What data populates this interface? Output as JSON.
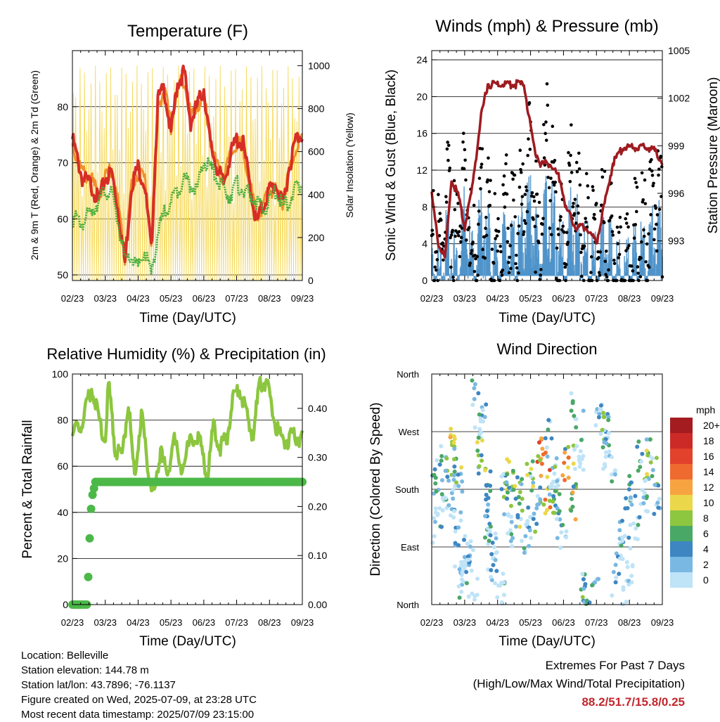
{
  "xticks": [
    "02/23",
    "03/23",
    "04/23",
    "05/23",
    "06/23",
    "07/23",
    "08/23",
    "09/23"
  ],
  "footer": {
    "location": "Location: Belleville",
    "elevation": "Station elevation: 144.78 m",
    "latlon": "Station lat/lon: 43.7896; -76.1137",
    "created": "Figure created on Wed, 2025-07-09, at 23:28 UTC",
    "recent": "Most recent data timestamp: 2025/07/09 23:15:00",
    "extremes_title": "Extremes For Past 7 Days",
    "extremes_sub": "(High/Low/Max Wind/Total Precipitation)",
    "extremes_values": "88.2/51.7/15.8/0.25"
  },
  "chart_data": [
    {
      "type": "line",
      "title": "Temperature (F)",
      "xlabel": "Time (Day/UTC)",
      "ylabel": "2m & 9m T (Red, Orange) & 2m Td (Green)",
      "ylabel_right": "Solar Insolation (Yellow)",
      "ylim": [
        49,
        90
      ],
      "yticks": [
        50,
        60,
        70,
        80
      ],
      "ylim_right": [
        0,
        1070
      ],
      "yticks_right": [
        0,
        200,
        400,
        600,
        800,
        1000
      ],
      "x_months": [
        0,
        0.3,
        0.55,
        0.8,
        1.0,
        1.2,
        1.4,
        1.6,
        1.8,
        2.0,
        2.2,
        2.4,
        2.6,
        2.8,
        3.0,
        3.2,
        3.4,
        3.6,
        3.8,
        4.0,
        4.2,
        4.4,
        4.6,
        4.8,
        5.0,
        5.2,
        5.4,
        5.6,
        5.8,
        6.0,
        6.2,
        6.4,
        6.6,
        6.8,
        7.0
      ],
      "series": [
        {
          "color": "#d62e26",
          "values": [
            75,
            68,
            67,
            64,
            68,
            69,
            62,
            53,
            67,
            70,
            67,
            55,
            82,
            84,
            76,
            85,
            87,
            78,
            81,
            84,
            74,
            70,
            67,
            72,
            75,
            74,
            67,
            60,
            63,
            66,
            67,
            63,
            70,
            75,
            76
          ]
        },
        {
          "color": "#f0902a",
          "values": [
            74,
            69,
            68,
            65,
            68,
            70,
            63,
            54,
            67,
            69,
            68,
            57,
            81,
            84,
            77,
            84,
            86,
            79,
            81,
            83,
            75,
            70,
            68,
            72,
            74,
            74,
            67,
            61,
            63,
            66,
            66,
            64,
            69,
            74,
            75
          ]
        },
        {
          "color": "#4caf3e",
          "values": [
            61,
            60,
            62,
            64,
            66,
            65,
            60,
            53,
            54,
            52,
            55,
            51,
            58,
            62,
            64,
            66,
            68,
            67,
            66,
            71,
            70,
            68,
            66,
            65,
            67,
            66,
            65,
            64,
            62,
            64,
            66,
            63,
            64,
            66,
            67
          ]
        }
      ]
    },
    {
      "type": "line",
      "title": "Winds (mph) & Pressure (mb)",
      "xlabel": "Time (Day/UTC)",
      "ylabel": "Sonic Wind & Gust (Blue, Black)",
      "ylabel_right": "Station Pressure (Maroon)",
      "ylim": [
        0,
        25
      ],
      "yticks": [
        0,
        4,
        8,
        12,
        16,
        20,
        24
      ],
      "ylim_right": [
        990.5,
        1005
      ],
      "yticks_right": [
        993,
        996,
        999,
        1002,
        1005
      ],
      "pressure_x_months": [
        0,
        0.2,
        0.4,
        0.6,
        0.8,
        1.0,
        1.2,
        1.5,
        1.7,
        2.0,
        2.4,
        2.8,
        3.1,
        3.3,
        3.6,
        3.9,
        4.1,
        4.4,
        4.7,
        5.0,
        5.3,
        5.5,
        5.8,
        6.1,
        6.4,
        6.7,
        7.0
      ],
      "pressure": [
        996,
        993,
        992,
        997,
        996,
        994,
        996,
        1001,
        1003,
        1003,
        1003,
        1003,
        999,
        998,
        998,
        997,
        995,
        994,
        994,
        993,
        996,
        998,
        999,
        999,
        999,
        999,
        998
      ],
      "wind_x_months": [
        0,
        0.25,
        0.5,
        0.75,
        1.0,
        1.25,
        1.5,
        1.75,
        2.0,
        2.25,
        2.5,
        2.75,
        3.0,
        3.25,
        3.5,
        3.75,
        4.0,
        4.25,
        4.5,
        4.75,
        5.0,
        5.25,
        5.5,
        5.75,
        6.0,
        6.25,
        6.5,
        6.75,
        7.0
      ],
      "series": [
        {
          "name": "Gust",
          "color": "#000000",
          "values": [
            8,
            6,
            12,
            7,
            16,
            4,
            13,
            10,
            6,
            12,
            8,
            12,
            18,
            7,
            18,
            11,
            6,
            14,
            10,
            8,
            6,
            10,
            7,
            4,
            6,
            9,
            8,
            12,
            10
          ]
        },
        {
          "name": "Wind",
          "color": "#4a90c8",
          "values": [
            4,
            3,
            6,
            4,
            8,
            3,
            8,
            6,
            3,
            6,
            4,
            7,
            10,
            4,
            10,
            7,
            4,
            9,
            6,
            4,
            3,
            6,
            4,
            2,
            3,
            5,
            4,
            7,
            6
          ]
        }
      ]
    },
    {
      "type": "line",
      "title": "Relative Humidity (%) & Precipitation (in)",
      "xlabel": "Time (Day/UTC)",
      "ylabel": "Percent & Total Rainfall",
      "ylim": [
        0,
        100
      ],
      "yticks": [
        0,
        20,
        40,
        60,
        80,
        100
      ],
      "ylim_right": [
        0,
        0.47
      ],
      "yticks_right": [
        "0.00",
        "0.10",
        "0.20",
        "0.30",
        "0.40"
      ],
      "rh_x_months": [
        0,
        0.3,
        0.5,
        0.6,
        0.8,
        1.0,
        1.1,
        1.3,
        1.5,
        1.7,
        1.9,
        2.1,
        2.3,
        2.5,
        2.7,
        2.9,
        3.1,
        3.3,
        3.5,
        3.7,
        3.9,
        4.1,
        4.3,
        4.5,
        4.7,
        4.9,
        5.1,
        5.3,
        5.5,
        5.7,
        5.9,
        6.1,
        6.3,
        6.5,
        6.7,
        6.9,
        7.0
      ],
      "rh": [
        76,
        80,
        93,
        96,
        82,
        72,
        98,
        70,
        65,
        90,
        55,
        86,
        60,
        48,
        72,
        55,
        78,
        58,
        70,
        74,
        72,
        56,
        80,
        70,
        74,
        92,
        95,
        84,
        75,
        98,
        99,
        85,
        75,
        73,
        75,
        74,
        74
      ],
      "precip_x_months": [
        0,
        0.3,
        0.45,
        0.55,
        0.6,
        0.7,
        7.0
      ],
      "precip": [
        0.0,
        0.0,
        0.0,
        0.18,
        0.22,
        0.25,
        0.25
      ],
      "series": [
        {
          "name": "RH",
          "color": "#8cc63f"
        },
        {
          "name": "Precip",
          "color": "#4cb849"
        }
      ]
    },
    {
      "type": "scatter",
      "title": "Wind Direction",
      "xlabel": "Time (Day/UTC)",
      "ylabel": "Direction (Colored By Speed)",
      "yticks": [
        "North",
        "East",
        "South",
        "West",
        "North"
      ],
      "ylim": [
        0,
        360
      ],
      "colorbar_unit": "mph",
      "colorbar": [
        {
          "label": "20+",
          "color": "#a51c20"
        },
        {
          "label": "18",
          "color": "#cc2a26"
        },
        {
          "label": "16",
          "color": "#e2422c"
        },
        {
          "label": "14",
          "color": "#ef6a2e"
        },
        {
          "label": "12",
          "color": "#f7a440"
        },
        {
          "label": "10",
          "color": "#ead84a"
        },
        {
          "label": "8",
          "color": "#8dc63f"
        },
        {
          "label": "6",
          "color": "#4aa866"
        },
        {
          "label": "4",
          "color": "#3e86c2"
        },
        {
          "label": "2",
          "color": "#79b8e2"
        },
        {
          "label": "0",
          "color": "#bfe3f7"
        }
      ],
      "clusters": [
        {
          "x": 0.1,
          "y": 185,
          "s": 3
        },
        {
          "x": 0.35,
          "y": 200,
          "s": 4
        },
        {
          "x": 0.6,
          "y": 225,
          "s": 6
        },
        {
          "x": 0.85,
          "y": 245,
          "s": 10
        },
        {
          "x": 1.0,
          "y": 120,
          "s": 2
        },
        {
          "x": 1.1,
          "y": 30,
          "s": 3
        },
        {
          "x": 1.3,
          "y": 90,
          "s": 2
        },
        {
          "x": 1.55,
          "y": 340,
          "s": 4
        },
        {
          "x": 1.7,
          "y": 240,
          "s": 9
        },
        {
          "x": 1.9,
          "y": 120,
          "s": 3
        },
        {
          "x": 2.1,
          "y": 80,
          "s": 4
        },
        {
          "x": 2.4,
          "y": 180,
          "s": 6
        },
        {
          "x": 2.6,
          "y": 200,
          "s": 8
        },
        {
          "x": 2.9,
          "y": 170,
          "s": 5
        },
        {
          "x": 3.2,
          "y": 200,
          "s": 7
        },
        {
          "x": 3.5,
          "y": 230,
          "s": 14
        },
        {
          "x": 3.75,
          "y": 260,
          "s": 5
        },
        {
          "x": 4.0,
          "y": 170,
          "s": 6
        },
        {
          "x": 4.3,
          "y": 220,
          "s": 11
        },
        {
          "x": 4.5,
          "y": 300,
          "s": 4
        },
        {
          "x": 4.85,
          "y": 20,
          "s": 5
        },
        {
          "x": 5.1,
          "y": 20,
          "s": 4
        },
        {
          "x": 5.3,
          "y": 300,
          "s": 2
        },
        {
          "x": 5.5,
          "y": 270,
          "s": 5
        },
        {
          "x": 5.8,
          "y": 60,
          "s": 2
        },
        {
          "x": 6.0,
          "y": 120,
          "s": 3
        },
        {
          "x": 6.2,
          "y": 180,
          "s": 4
        },
        {
          "x": 6.5,
          "y": 230,
          "s": 6
        },
        {
          "x": 6.85,
          "y": 230,
          "s": 8
        }
      ]
    }
  ]
}
